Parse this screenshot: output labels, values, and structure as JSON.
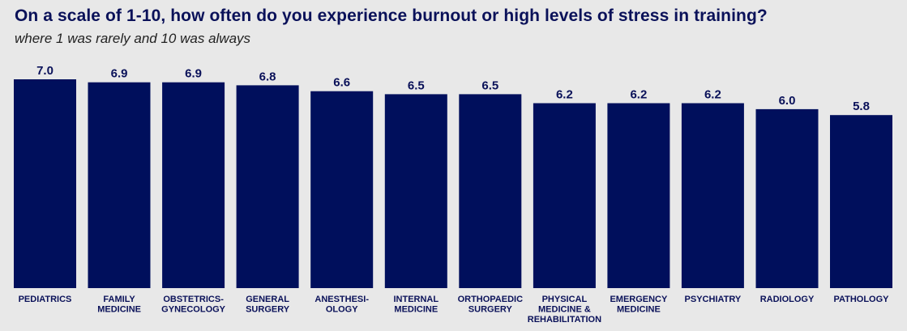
{
  "title": "On a scale of 1-10, how often do you experience burnout or high levels of stress in training?",
  "subtitle": "where 1 was rarely and 10 was always",
  "colors": {
    "bar": "#000f5c",
    "text": "#0a1159",
    "background": "#e8e8e8"
  },
  "chart_data": {
    "type": "bar",
    "title": "On a scale of 1-10, how often do you experience burnout or high levels of stress in training?",
    "subtitle": "where 1 was rarely and 10 was always",
    "categories": [
      [
        "PEDIATRICS"
      ],
      [
        "FAMILY",
        "MEDICINE"
      ],
      [
        "OBSTETRICS-",
        "GYNECOLOGY"
      ],
      [
        "GENERAL",
        "SURGERY"
      ],
      [
        "ANESTHESI-",
        "OLOGY"
      ],
      [
        "INTERNAL",
        "MEDICINE"
      ],
      [
        "ORTHOPAEDIC",
        "SURGERY"
      ],
      [
        "PHYSICAL",
        "MEDICINE &",
        "REHABILITATION"
      ],
      [
        "EMERGENCY",
        "MEDICINE"
      ],
      [
        "PSYCHIATRY"
      ],
      [
        "RADIOLOGY"
      ],
      [
        "PATHOLOGY"
      ]
    ],
    "values": [
      7.0,
      6.9,
      6.9,
      6.8,
      6.6,
      6.5,
      6.5,
      6.2,
      6.2,
      6.2,
      6.0,
      5.8
    ],
    "value_labels": [
      "7.0",
      "6.9",
      "6.9",
      "6.8",
      "6.6",
      "6.5",
      "6.5",
      "6.2",
      "6.2",
      "6.2",
      "6.0",
      "5.8"
    ],
    "xlabel": "",
    "ylabel": "",
    "ylim": [
      0,
      10
    ],
    "grid": false,
    "legend": "none"
  }
}
